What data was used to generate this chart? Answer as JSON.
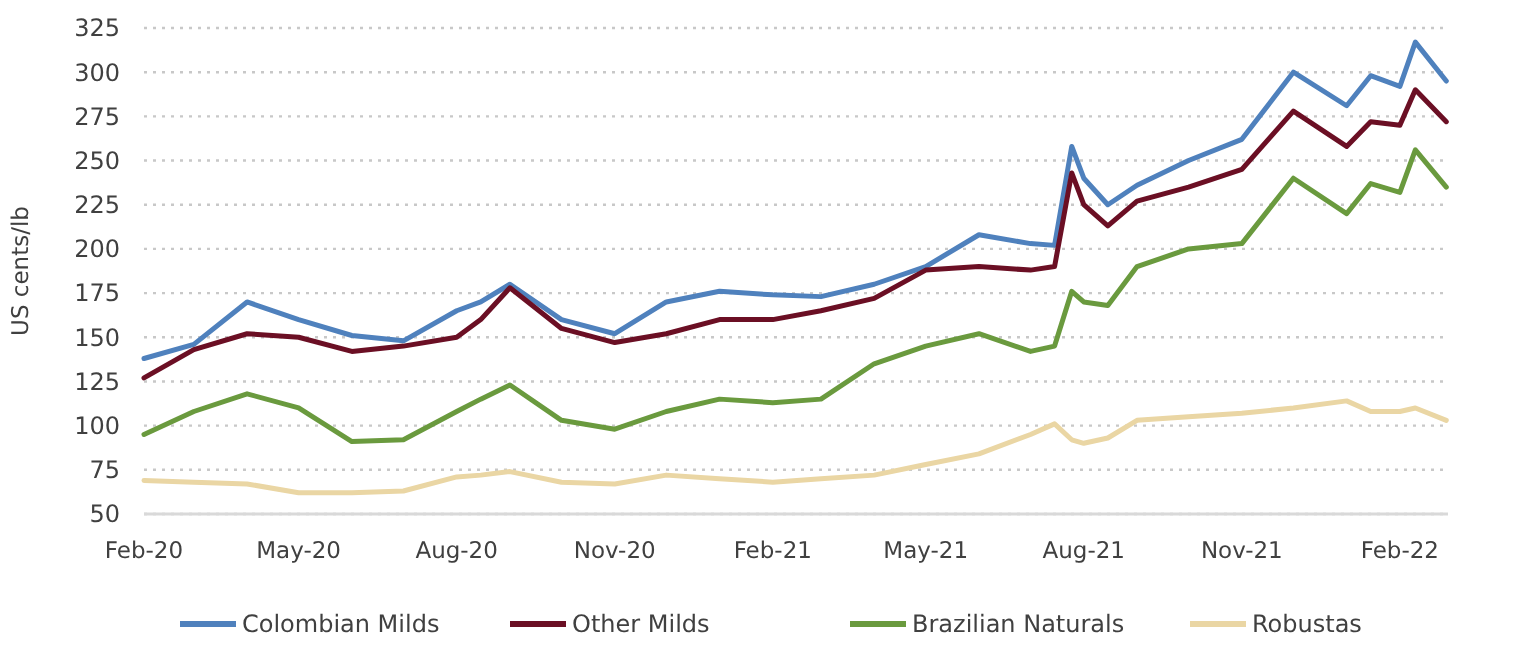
{
  "chart_data": {
    "type": "line",
    "ylabel": "US cents/lb",
    "x": [
      "2020-02-01",
      "2020-03-01",
      "2020-04-01",
      "2020-05-01",
      "2020-06-01",
      "2020-07-01",
      "2020-08-01",
      "2020-08-15",
      "2020-09-01",
      "2020-10-01",
      "2020-11-01",
      "2020-12-01",
      "2021-01-01",
      "2021-02-01",
      "2021-03-01",
      "2021-04-01",
      "2021-05-01",
      "2021-06-01",
      "2021-07-01",
      "2021-07-15",
      "2021-07-25",
      "2021-08-01",
      "2021-08-15",
      "2021-09-01",
      "2021-10-01",
      "2021-11-01",
      "2021-12-01",
      "2022-01-01",
      "2022-01-15",
      "2022-02-01",
      "2022-02-10",
      "2022-02-28"
    ],
    "series": [
      {
        "name": "Colombian Milds",
        "color": "#4f81bd",
        "values": [
          138,
          146,
          170,
          160,
          151,
          148,
          165,
          170,
          180,
          160,
          152,
          170,
          176,
          174,
          173,
          180,
          190,
          208,
          203,
          202,
          258,
          240,
          225,
          236,
          250,
          262,
          300,
          281,
          298,
          292,
          317,
          295
        ]
      },
      {
        "name": "Other Milds",
        "color": "#6b0f24",
        "values": [
          127,
          143,
          152,
          150,
          142,
          145,
          150,
          160,
          178,
          155,
          147,
          152,
          160,
          160,
          165,
          172,
          188,
          190,
          188,
          190,
          243,
          225,
          213,
          227,
          235,
          245,
          278,
          258,
          272,
          270,
          290,
          272
        ]
      },
      {
        "name": "Brazilian Naturals",
        "color": "#6a9a3e",
        "values": [
          95,
          108,
          118,
          110,
          91,
          92,
          108,
          115,
          123,
          103,
          98,
          108,
          115,
          113,
          115,
          135,
          145,
          152,
          142,
          145,
          176,
          170,
          168,
          190,
          200,
          203,
          240,
          220,
          237,
          232,
          256,
          235
        ]
      },
      {
        "name": "Robustas",
        "color": "#ead6a4",
        "values": [
          69,
          68,
          67,
          62,
          62,
          63,
          71,
          72,
          74,
          68,
          67,
          72,
          70,
          68,
          70,
          72,
          78,
          84,
          95,
          101,
          92,
          90,
          93,
          103,
          105,
          107,
          110,
          114,
          108,
          108,
          110,
          103
        ]
      }
    ],
    "xlim": [
      "2020-02-01",
      "2022-03-01"
    ],
    "xticks": [
      {
        "value": "2020-02-01",
        "label": "Feb-20"
      },
      {
        "value": "2020-05-01",
        "label": "May-20"
      },
      {
        "value": "2020-08-01",
        "label": "Aug-20"
      },
      {
        "value": "2020-11-01",
        "label": "Nov-20"
      },
      {
        "value": "2021-02-01",
        "label": "Feb-21"
      },
      {
        "value": "2021-05-01",
        "label": "May-21"
      },
      {
        "value": "2021-08-01",
        "label": "Aug-21"
      },
      {
        "value": "2021-11-01",
        "label": "Nov-21"
      },
      {
        "value": "2022-02-01",
        "label": "Feb-22"
      }
    ],
    "ylim": [
      50,
      325
    ],
    "yticks": [
      50,
      75,
      100,
      125,
      150,
      175,
      200,
      225,
      250,
      275,
      300,
      325
    ],
    "grid": "y",
    "legend": "bottom",
    "marker": "none",
    "line_style": "solid"
  }
}
